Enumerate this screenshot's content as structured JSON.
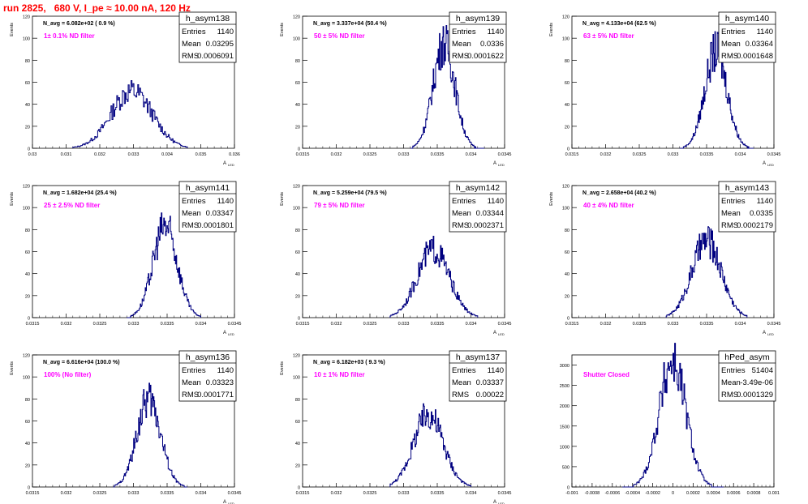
{
  "title": "run 2825,   680 V, I_pe ≈ 10.00 nA, 120 Hz",
  "colors": {
    "histogram": "#000080",
    "annotation": "#ff00ff",
    "title": "#ff0000"
  },
  "chart_data": [
    {
      "type": "histogram",
      "name": "h_asym138",
      "stats": {
        "entries": "1140",
        "mean": "0.03295",
        "rms": "0.0006091"
      },
      "navg": "N_avg = 6.082e+02 ( 0.9 %)",
      "filter": "1± 0.1% ND filter",
      "ylabel": "Events",
      "xlabel": "A",
      "xlim": [
        0.03,
        0.036
      ],
      "ylim": [
        0,
        120
      ],
      "xticks": [
        "0.03",
        "0.031",
        "0.032",
        "0.033",
        "0.034",
        "0.035",
        "0.036"
      ],
      "xtick_values": [
        0.03,
        0.031,
        0.032,
        0.033,
        0.034,
        0.035,
        0.036
      ],
      "yticks": [
        0,
        20,
        40,
        60,
        80,
        100,
        120
      ],
      "peak": 52,
      "center": 0.03295,
      "sigma": 0.00061,
      "lo": 0.0312,
      "hi": 0.0346
    },
    {
      "type": "histogram",
      "name": "h_asym139",
      "stats": {
        "entries": "1140",
        "mean": "0.0336",
        "rms": "0.0001622"
      },
      "navg": "N_avg = 3.337e+04 (50.4 %)",
      "filter": "50 ± 5% ND filter",
      "ylabel": "Events",
      "xlabel": "A",
      "xlim": [
        0.0315,
        0.0345
      ],
      "ylim": [
        0,
        120
      ],
      "xticks": [
        "0.0315",
        "0.032",
        "0.0325",
        "0.033",
        "0.0335",
        "0.034",
        "0.0345"
      ],
      "xtick_values": [
        0.0315,
        0.032,
        0.0325,
        0.033,
        0.0335,
        0.034,
        0.0345
      ],
      "yticks": [
        0,
        20,
        40,
        60,
        80,
        100,
        120
      ],
      "peak": 95,
      "center": 0.0336,
      "sigma": 0.000162,
      "lo": 0.0331,
      "hi": 0.0342
    },
    {
      "type": "histogram",
      "name": "h_asym140",
      "stats": {
        "entries": "1140",
        "mean": "0.03364",
        "rms": "0.0001648"
      },
      "navg": "N_avg = 4.133e+04 (62.5 %)",
      "filter": "63 ± 5% ND filter",
      "ylabel": "Events",
      "xlabel": "A",
      "xlim": [
        0.0315,
        0.0345
      ],
      "ylim": [
        0,
        120
      ],
      "xticks": [
        "0.0315",
        "0.032",
        "0.0325",
        "0.033",
        "0.0335",
        "0.034",
        "0.0345"
      ],
      "xtick_values": [
        0.0315,
        0.032,
        0.0325,
        0.033,
        0.0335,
        0.034,
        0.0345
      ],
      "yticks": [
        0,
        20,
        40,
        60,
        80,
        100,
        120
      ],
      "peak": 88,
      "center": 0.03364,
      "sigma": 0.000165,
      "lo": 0.0331,
      "hi": 0.0342
    },
    {
      "type": "histogram",
      "name": "h_asym141",
      "stats": {
        "entries": "1140",
        "mean": "0.03347",
        "rms": "0.0001801"
      },
      "navg": "N_avg = 1.682e+04 (25.4 %)",
      "filter": "25 ± 2.5% ND filter",
      "ylabel": "Events",
      "xlabel": "A",
      "xlim": [
        0.0315,
        0.0345
      ],
      "ylim": [
        0,
        120
      ],
      "xticks": [
        "0.0315",
        "0.032",
        "0.0325",
        "0.033",
        "0.0335",
        "0.034",
        "0.0345"
      ],
      "xtick_values": [
        0.0315,
        0.032,
        0.0325,
        0.033,
        0.0335,
        0.034,
        0.0345
      ],
      "yticks": [
        0,
        20,
        40,
        60,
        80,
        100,
        120
      ],
      "peak": 83,
      "center": 0.03347,
      "sigma": 0.00018,
      "lo": 0.0329,
      "hi": 0.034
    },
    {
      "type": "histogram",
      "name": "h_asym142",
      "stats": {
        "entries": "1140",
        "mean": "0.03344",
        "rms": "0.0002371"
      },
      "navg": "N_avg = 5.259e+04 (79.5 %)",
      "filter": "79 ± 5% ND filter",
      "ylabel": "Events",
      "xlabel": "A",
      "xlim": [
        0.0315,
        0.0345
      ],
      "ylim": [
        0,
        120
      ],
      "xticks": [
        "0.0315",
        "0.032",
        "0.0325",
        "0.033",
        "0.0335",
        "0.034",
        "0.0345"
      ],
      "xtick_values": [
        0.0315,
        0.032,
        0.0325,
        0.033,
        0.0335,
        0.034,
        0.0345
      ],
      "yticks": [
        0,
        20,
        40,
        60,
        80,
        100,
        120
      ],
      "peak": 62,
      "center": 0.03344,
      "sigma": 0.000237,
      "lo": 0.0328,
      "hi": 0.0341
    },
    {
      "type": "histogram",
      "name": "h_asym143",
      "stats": {
        "entries": "1140",
        "mean": "0.0335",
        "rms": "0.0002179"
      },
      "navg": "N_avg = 2.658e+04 (40.2 %)",
      "filter": "40 ± 4% ND filter",
      "ylabel": "Events",
      "xlabel": "A",
      "xlim": [
        0.0315,
        0.0345
      ],
      "ylim": [
        0,
        120
      ],
      "xticks": [
        "0.0315",
        "0.032",
        "0.0325",
        "0.033",
        "0.0335",
        "0.034",
        "0.0345"
      ],
      "xtick_values": [
        0.0315,
        0.032,
        0.0325,
        0.033,
        0.0335,
        0.034,
        0.0345
      ],
      "yticks": [
        0,
        20,
        40,
        60,
        80,
        100,
        120
      ],
      "peak": 70,
      "center": 0.0335,
      "sigma": 0.000218,
      "lo": 0.0329,
      "hi": 0.0341
    },
    {
      "type": "histogram",
      "name": "h_asym136",
      "stats": {
        "entries": "1140",
        "mean": "0.03323",
        "rms": "0.0001771"
      },
      "navg": "N_avg = 6.616e+04 (100.0 %)",
      "filter": "100% (No filter)",
      "ylabel": "Events",
      "xlabel": "A",
      "xlim": [
        0.0315,
        0.0345
      ],
      "ylim": [
        0,
        120
      ],
      "xticks": [
        "0.0315",
        "0.032",
        "0.0325",
        "0.033",
        "0.0335",
        "0.034",
        "0.0345"
      ],
      "xtick_values": [
        0.0315,
        0.032,
        0.0325,
        0.033,
        0.0335,
        0.034,
        0.0345
      ],
      "yticks": [
        0,
        20,
        40,
        60,
        80,
        100,
        120
      ],
      "peak": 80,
      "center": 0.03323,
      "sigma": 0.000177,
      "lo": 0.0327,
      "hi": 0.0338
    },
    {
      "type": "histogram",
      "name": "h_asym137",
      "stats": {
        "entries": "1140",
        "mean": "0.03337",
        "rms": "0.00022"
      },
      "navg": "N_avg = 6.182e+03 ( 9.3 %)",
      "filter": "10 ± 1% ND filter",
      "ylabel": "Events",
      "xlabel": "A",
      "xlim": [
        0.0315,
        0.0345
      ],
      "ylim": [
        0,
        120
      ],
      "xticks": [
        "0.0315",
        "0.032",
        "0.0325",
        "0.033",
        "0.0335",
        "0.034",
        "0.0345"
      ],
      "xtick_values": [
        0.0315,
        0.032,
        0.0325,
        0.033,
        0.0335,
        0.034,
        0.0345
      ],
      "yticks": [
        0,
        20,
        40,
        60,
        80,
        100,
        120
      ],
      "peak": 66,
      "center": 0.03337,
      "sigma": 0.00022,
      "lo": 0.0328,
      "hi": 0.034
    },
    {
      "type": "histogram",
      "name": "hPed_asym",
      "stats": {
        "entries": "51404",
        "mean": "-3.49e-06",
        "rms": "0.0001329"
      },
      "navg": "",
      "filter": "Shutter Closed",
      "ylabel": "",
      "xlabel": "",
      "xlim": [
        -0.001,
        0.001
      ],
      "ylim": [
        0,
        3250
      ],
      "xticks": [
        "-0.001",
        "-0.0008",
        "-0.0006",
        "-0.0004",
        "-0.0002",
        "0",
        "0.0002",
        "0.0004",
        "0.0006",
        "0.0008",
        "0.001"
      ],
      "xtick_values": [
        -0.001,
        -0.0008,
        -0.0006,
        -0.0004,
        -0.0002,
        0,
        0.0002,
        0.0004,
        0.0006,
        0.0008,
        0.001
      ],
      "yticks": [
        0,
        500,
        1000,
        1500,
        2000,
        2500,
        3000
      ],
      "peak": 3080,
      "center": -3.5e-06,
      "sigma": 0.000133,
      "lo": -0.0005,
      "hi": 0.0005
    }
  ]
}
